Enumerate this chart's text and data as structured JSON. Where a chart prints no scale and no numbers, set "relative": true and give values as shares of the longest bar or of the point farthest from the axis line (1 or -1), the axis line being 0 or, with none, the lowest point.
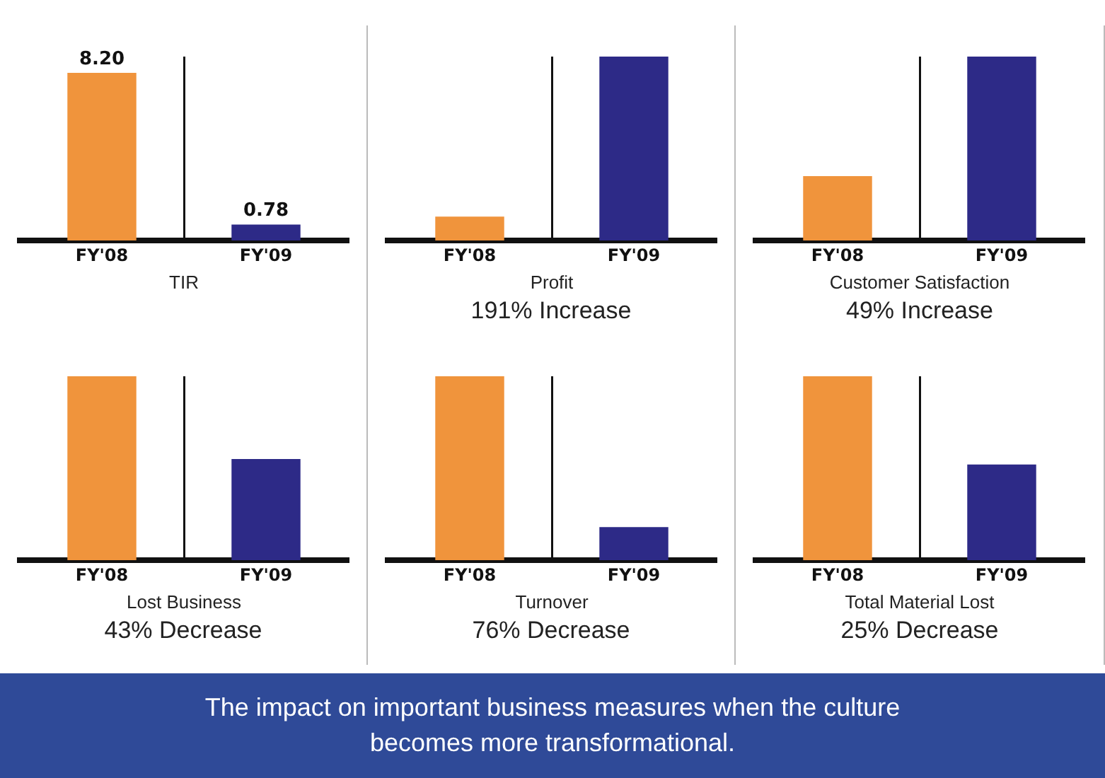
{
  "chart_data": [
    {
      "type": "bar",
      "categories": [
        "FY'08",
        "FY'09"
      ],
      "values": [
        8.2,
        0.78
      ],
      "value_labels": [
        "8.20",
        "0.78"
      ],
      "colors": [
        "#f0943c",
        "#2d2a87"
      ],
      "xlabel": "TIR",
      "grid": "x"
    },
    {
      "type": "bar",
      "relative": true,
      "categories": [
        "FY'08",
        "FY'09"
      ],
      "values": [
        0.13,
        1
      ],
      "colors": [
        "#f0943c",
        "#2d2a87"
      ],
      "xlabel": "Profit",
      "annotations": [
        "191% Increase"
      ],
      "grid": "x"
    },
    {
      "type": "bar",
      "relative": true,
      "categories": [
        "FY'08",
        "FY'09"
      ],
      "values": [
        0.35,
        1
      ],
      "colors": [
        "#f0943c",
        "#2d2a87"
      ],
      "xlabel": "Customer Satisfaction",
      "annotations": [
        "49% Increase"
      ],
      "grid": "x"
    },
    {
      "type": "bar",
      "relative": true,
      "categories": [
        "FY'08",
        "FY'09"
      ],
      "values": [
        1,
        0.55
      ],
      "colors": [
        "#f0943c",
        "#2d2a87"
      ],
      "xlabel": "Lost Business",
      "annotations": [
        "43% Decrease"
      ],
      "grid": "x"
    },
    {
      "type": "bar",
      "relative": true,
      "categories": [
        "FY'08",
        "FY'09"
      ],
      "values": [
        1,
        0.18
      ],
      "colors": [
        "#f0943c",
        "#2d2a87"
      ],
      "xlabel": "Turnover",
      "annotations": [
        "76% Decrease"
      ],
      "grid": "x"
    },
    {
      "type": "bar",
      "relative": true,
      "categories": [
        "FY'08",
        "FY'09"
      ],
      "values": [
        1,
        0.52
      ],
      "colors": [
        "#f0943c",
        "#2d2a87"
      ],
      "xlabel": "Total Material Lost",
      "annotations": [
        "25% Decrease"
      ],
      "grid": "x"
    },
    {
      "type": "other",
      "title": "The impact on important business measures when the culture becomes more transformational."
    }
  ]
}
